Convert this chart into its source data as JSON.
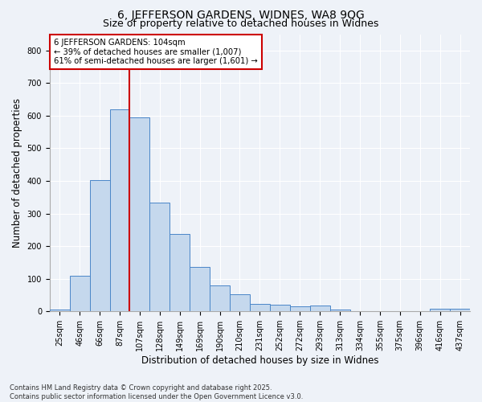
{
  "title": "6, JEFFERSON GARDENS, WIDNES, WA8 9QG",
  "subtitle": "Size of property relative to detached houses in Widnes",
  "xlabel": "Distribution of detached houses by size in Widnes",
  "ylabel": "Number of detached properties",
  "categories": [
    "25sqm",
    "46sqm",
    "66sqm",
    "87sqm",
    "107sqm",
    "128sqm",
    "149sqm",
    "169sqm",
    "190sqm",
    "210sqm",
    "231sqm",
    "252sqm",
    "272sqm",
    "293sqm",
    "313sqm",
    "334sqm",
    "355sqm",
    "375sqm",
    "396sqm",
    "416sqm",
    "437sqm"
  ],
  "values": [
    5,
    109,
    403,
    619,
    596,
    333,
    237,
    136,
    80,
    53,
    23,
    20,
    16,
    18,
    5,
    0,
    0,
    0,
    0,
    7,
    8
  ],
  "bar_color": "#c5d8ed",
  "bar_edge_color": "#4a86c8",
  "vline_x_index": 3.5,
  "vline_color": "#cc0000",
  "annotation_text": "6 JEFFERSON GARDENS: 104sqm\n← 39% of detached houses are smaller (1,007)\n61% of semi-detached houses are larger (1,601) →",
  "annotation_box_color": "white",
  "annotation_box_edge_color": "#cc0000",
  "ylim": [
    0,
    850
  ],
  "yticks": [
    0,
    100,
    200,
    300,
    400,
    500,
    600,
    700,
    800
  ],
  "footer": "Contains HM Land Registry data © Crown copyright and database right 2025.\nContains public sector information licensed under the Open Government Licence v3.0.",
  "bg_color": "#eef2f8",
  "title_fontsize": 10,
  "subtitle_fontsize": 9,
  "tick_fontsize": 7,
  "label_fontsize": 8.5,
  "footer_fontsize": 6
}
